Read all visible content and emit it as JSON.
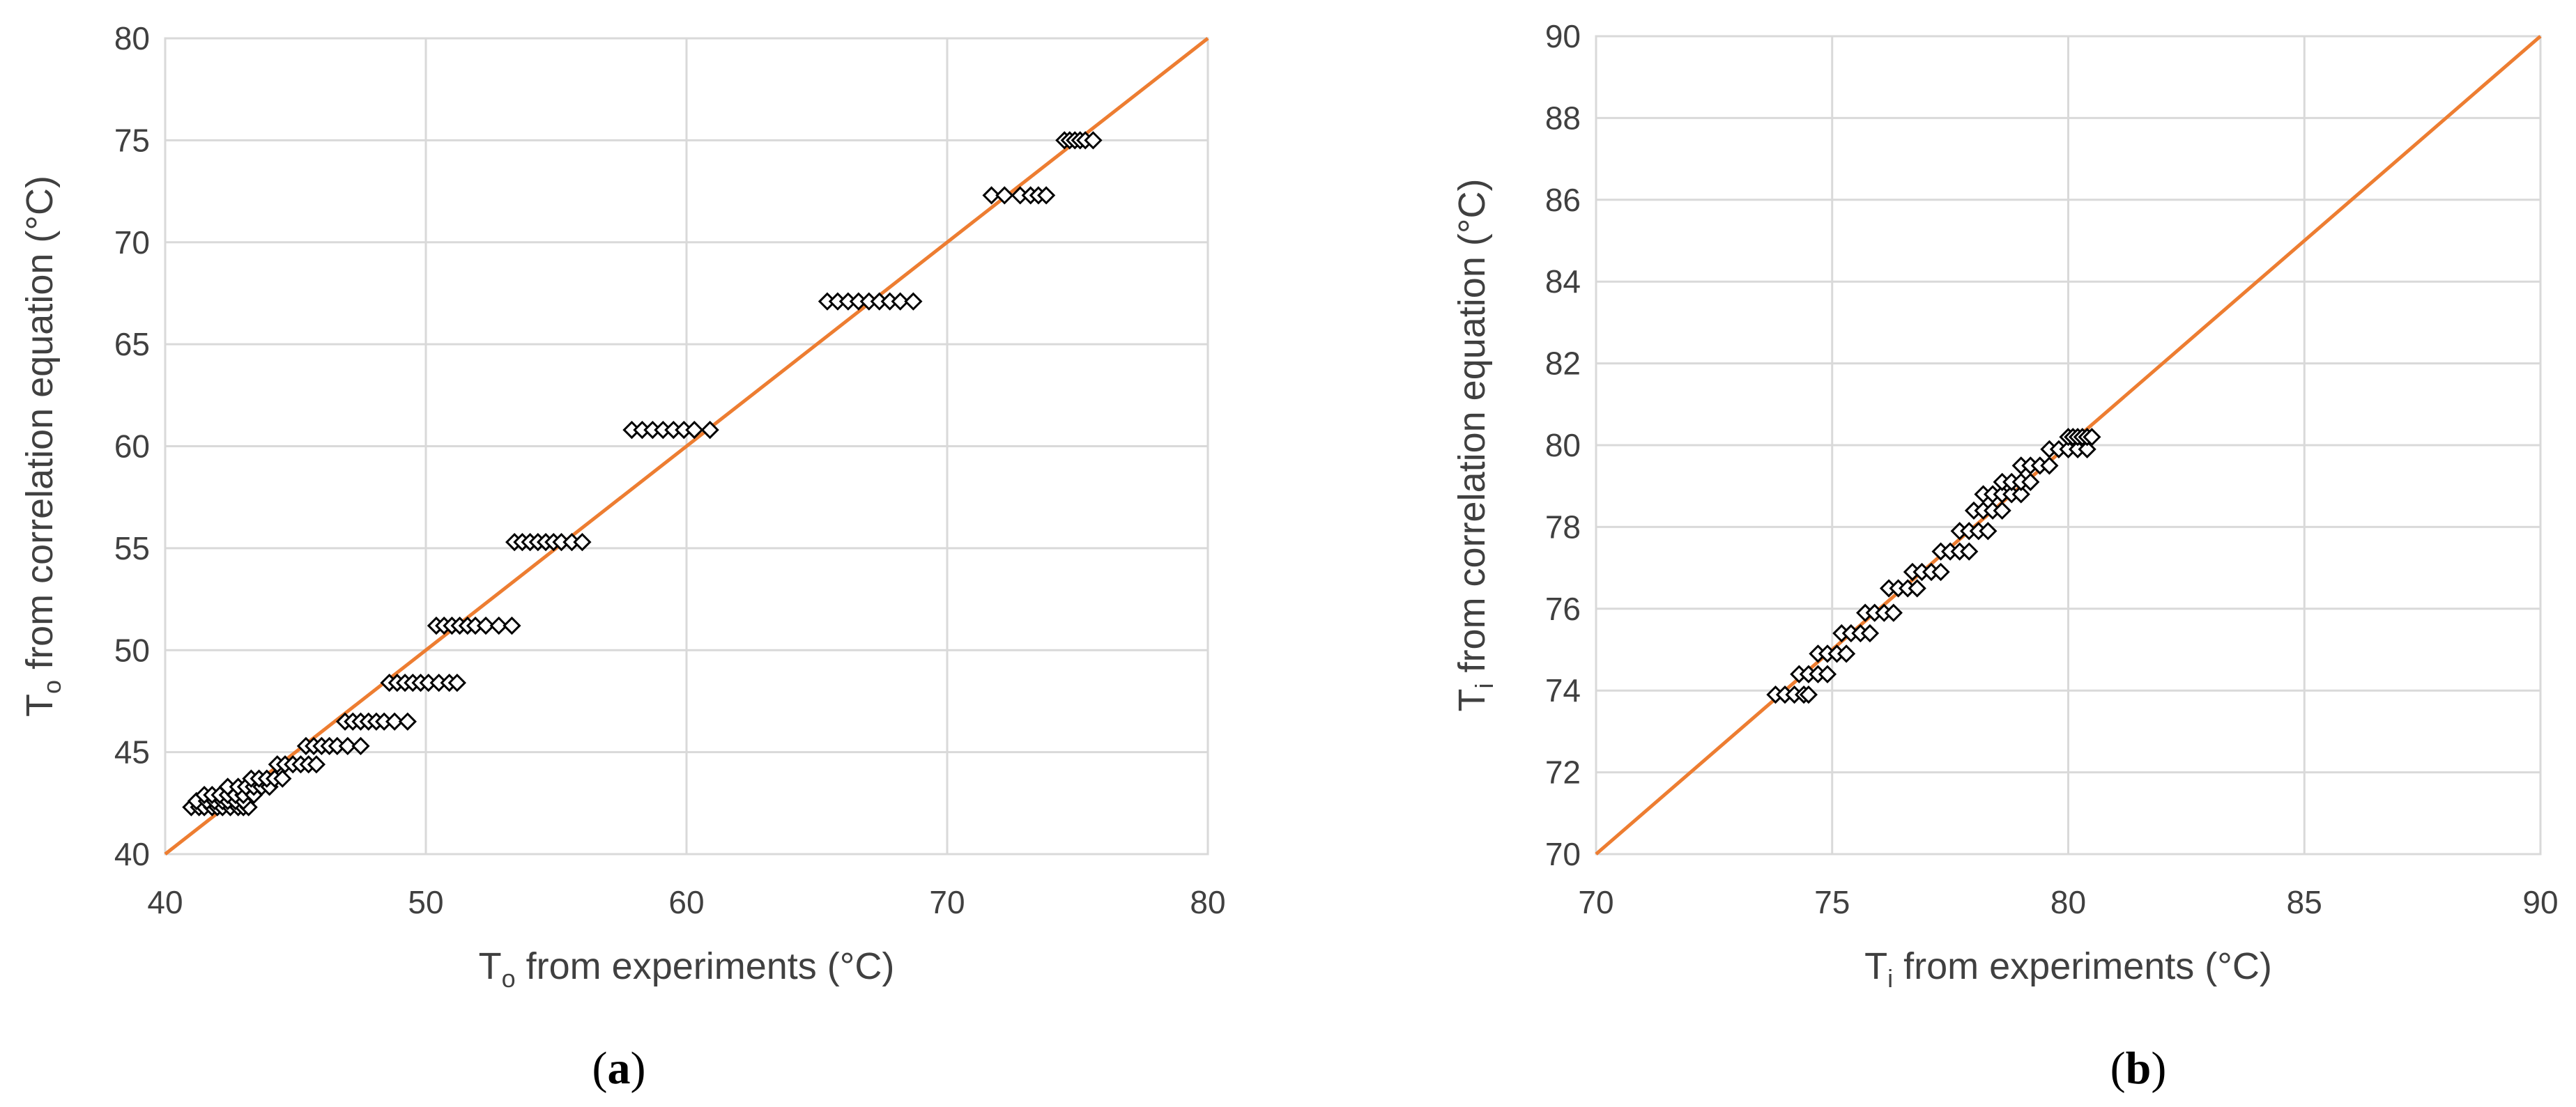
{
  "chart_data": [
    {
      "id": "a",
      "type": "scatter",
      "panel_label": "a",
      "xlabel": {
        "main": "T",
        "sub": "o",
        "rest": " from experiments (°C)"
      },
      "ylabel": {
        "main": "T",
        "sub": "o",
        "rest": " from correlation equation (°C)"
      },
      "xlim": [
        40,
        80
      ],
      "ylim": [
        40,
        80
      ],
      "xticks": [
        40,
        50,
        60,
        70,
        80
      ],
      "yticks": [
        40,
        45,
        50,
        55,
        60,
        65,
        70,
        75,
        80
      ],
      "grid": true,
      "legend": "none",
      "reference_line": {
        "from": [
          40,
          40
        ],
        "to": [
          80,
          80
        ],
        "color": "#ED7D31"
      },
      "marker": "open-diamond",
      "marker_color": "#000000",
      "clusters": [
        {
          "y": 42.3,
          "x": [
            41.0,
            41.3,
            41.5,
            41.8,
            42.0,
            42.2,
            42.5,
            42.8,
            43.0,
            43.2
          ]
        },
        {
          "y": 42.6,
          "x": [
            41.2,
            41.6,
            41.9,
            42.2,
            42.4,
            42.7,
            43.0
          ]
        },
        {
          "y": 42.9,
          "x": [
            41.5,
            41.8,
            42.1,
            42.4,
            42.7,
            43.0,
            43.4
          ]
        },
        {
          "y": 43.3,
          "x": [
            42.4,
            42.8,
            43.1,
            43.4,
            43.7,
            44.0
          ]
        },
        {
          "y": 43.7,
          "x": [
            43.3,
            43.6,
            43.9,
            44.2,
            44.5
          ]
        },
        {
          "y": 44.4,
          "x": [
            44.3,
            44.6,
            44.9,
            45.2,
            45.5,
            45.8
          ]
        },
        {
          "y": 45.3,
          "x": [
            45.4,
            45.7,
            46.0,
            46.3,
            46.6,
            47.0,
            47.5
          ]
        },
        {
          "y": 46.5,
          "x": [
            46.9,
            47.2,
            47.5,
            47.8,
            48.1,
            48.4,
            48.8,
            49.3
          ]
        },
        {
          "y": 48.4,
          "x": [
            48.6,
            48.9,
            49.2,
            49.5,
            49.8,
            50.1,
            50.5,
            50.9,
            51.2
          ]
        },
        {
          "y": 51.2,
          "x": [
            50.4,
            50.7,
            51.0,
            51.3,
            51.6,
            51.9,
            52.3,
            52.8,
            53.3
          ]
        },
        {
          "y": 55.3,
          "x": [
            53.4,
            53.7,
            54.0,
            54.3,
            54.6,
            54.9,
            55.2,
            55.6,
            56.0
          ]
        },
        {
          "y": 60.8,
          "x": [
            57.9,
            58.3,
            58.7,
            59.1,
            59.5,
            59.9,
            60.3,
            60.9
          ]
        },
        {
          "y": 67.1,
          "x": [
            65.4,
            65.8,
            66.2,
            66.6,
            67.0,
            67.4,
            67.8,
            68.2,
            68.7
          ]
        },
        {
          "y": 72.3,
          "x": [
            71.7,
            72.2,
            72.8,
            73.2,
            73.5,
            73.8
          ]
        },
        {
          "y": 75.0,
          "x": [
            74.5,
            74.7,
            74.9,
            75.1,
            75.3,
            75.6
          ]
        }
      ]
    },
    {
      "id": "b",
      "type": "scatter",
      "panel_label": "b",
      "xlabel": {
        "main": "T",
        "sub": "i",
        "rest": " from experiments (°C)"
      },
      "ylabel": {
        "main": "T",
        "sub": "i",
        "rest": " from correlation equation (°C)"
      },
      "xlim": [
        70,
        90
      ],
      "ylim": [
        70,
        90
      ],
      "xticks": [
        70,
        75,
        80,
        85,
        90
      ],
      "yticks": [
        70,
        72,
        74,
        76,
        78,
        80,
        82,
        84,
        86,
        88,
        90
      ],
      "grid": true,
      "legend": "none",
      "reference_line": {
        "from": [
          70,
          70
        ],
        "to": [
          90,
          90
        ],
        "color": "#ED7D31"
      },
      "marker": "open-diamond",
      "marker_color": "#000000",
      "clusters": [
        {
          "y": 73.9,
          "x": [
            73.8,
            74.0,
            74.2,
            74.4,
            74.5
          ]
        },
        {
          "y": 74.4,
          "x": [
            74.3,
            74.5,
            74.7,
            74.9
          ]
        },
        {
          "y": 74.9,
          "x": [
            74.7,
            74.9,
            75.1,
            75.3
          ]
        },
        {
          "y": 75.4,
          "x": [
            75.2,
            75.4,
            75.6,
            75.8
          ]
        },
        {
          "y": 75.9,
          "x": [
            75.7,
            75.9,
            76.1,
            76.3
          ]
        },
        {
          "y": 76.5,
          "x": [
            76.2,
            76.4,
            76.6,
            76.8
          ]
        },
        {
          "y": 76.9,
          "x": [
            76.7,
            76.9,
            77.1,
            77.3
          ]
        },
        {
          "y": 77.4,
          "x": [
            77.3,
            77.5,
            77.7,
            77.9
          ]
        },
        {
          "y": 77.9,
          "x": [
            77.7,
            77.9,
            78.1,
            78.3
          ]
        },
        {
          "y": 78.4,
          "x": [
            78.0,
            78.2,
            78.4,
            78.6
          ]
        },
        {
          "y": 78.8,
          "x": [
            78.2,
            78.4,
            78.6,
            78.8,
            79.0
          ]
        },
        {
          "y": 79.1,
          "x": [
            78.6,
            78.8,
            79.0,
            79.2
          ]
        },
        {
          "y": 79.5,
          "x": [
            79.0,
            79.2,
            79.4,
            79.6
          ]
        },
        {
          "y": 79.9,
          "x": [
            79.6,
            79.8,
            80.0,
            80.2,
            80.4
          ]
        },
        {
          "y": 80.2,
          "x": [
            80.0,
            80.1,
            80.2,
            80.3,
            80.4,
            80.5
          ]
        }
      ]
    }
  ]
}
